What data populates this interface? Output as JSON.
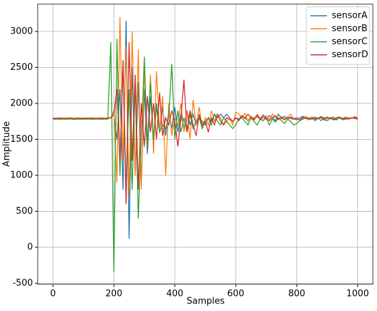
{
  "chart_data": {
    "type": "line",
    "xlabel": "Samples",
    "ylabel": "Amplitude",
    "x": [
      0,
      10,
      20,
      30,
      40,
      50,
      60,
      70,
      80,
      90,
      100,
      110,
      120,
      130,
      140,
      150,
      160,
      170,
      180,
      190,
      200,
      210,
      220,
      230,
      240,
      250,
      260,
      270,
      280,
      290,
      300,
      310,
      320,
      330,
      340,
      350,
      360,
      370,
      380,
      390,
      400,
      410,
      420,
      430,
      440,
      450,
      460,
      470,
      480,
      490,
      500,
      510,
      520,
      530,
      540,
      550,
      560,
      570,
      580,
      590,
      600,
      610,
      620,
      630,
      640,
      650,
      660,
      670,
      680,
      690,
      700,
      710,
      720,
      730,
      740,
      750,
      760,
      770,
      780,
      790,
      800,
      810,
      820,
      830,
      840,
      850,
      860,
      870,
      880,
      890,
      900,
      910,
      920,
      930,
      940,
      950,
      960,
      970,
      980,
      990,
      1000
    ],
    "series": [
      {
        "name": "sensorA",
        "color": "#1f77b4",
        "values": [
          1790,
          1792,
          1788,
          1790,
          1791,
          1789,
          1790,
          1792,
          1788,
          1790,
          1790,
          1791,
          1789,
          1790,
          1788,
          1792,
          1790,
          1789,
          1791,
          1800,
          1850,
          1500,
          2200,
          800,
          3150,
          120,
          2500,
          1000,
          2300,
          900,
          2200,
          1300,
          2100,
          1500,
          2000,
          1600,
          1950,
          1550,
          1900,
          1650,
          1950,
          1600,
          1850,
          1650,
          1900,
          1700,
          1850,
          1700,
          1800,
          1750,
          1700,
          1800,
          1750,
          1850,
          1800,
          1850,
          1800,
          1850,
          1800,
          1750,
          1800,
          1780,
          1830,
          1800,
          1760,
          1820,
          1790,
          1840,
          1770,
          1810,
          1780,
          1830,
          1800,
          1760,
          1850,
          1790,
          1820,
          1780,
          1810,
          1790,
          1770,
          1800,
          1820,
          1790,
          1780,
          1810,
          1760,
          1790,
          1800,
          1770,
          1760,
          1790,
          1780,
          1770,
          1800,
          1790,
          1780,
          1800,
          1790,
          1810,
          1790
        ]
      },
      {
        "name": "sensorB",
        "color": "#ff7f0e",
        "values": [
          1785,
          1787,
          1783,
          1786,
          1784,
          1788,
          1785,
          1783,
          1786,
          1785,
          1787,
          1784,
          1786,
          1785,
          1783,
          1787,
          1785,
          1786,
          1784,
          1800,
          1900,
          900,
          3200,
          1200,
          2800,
          700,
          3000,
          1000,
          2750,
          800,
          2500,
          1400,
          2400,
          1300,
          2450,
          1600,
          2100,
          1000,
          2000,
          1550,
          1800,
          1700,
          2000,
          1600,
          1900,
          1500,
          2050,
          1700,
          1950,
          1650,
          1800,
          1700,
          1900,
          1750,
          1850,
          1800,
          1700,
          1750,
          1800,
          1700,
          1880,
          1850,
          1800,
          1860,
          1750,
          1820,
          1780,
          1850,
          1800,
          1760,
          1830,
          1780,
          1850,
          1800,
          1770,
          1820,
          1790,
          1800,
          1850,
          1790,
          1800,
          1760,
          1790,
          1820,
          1780,
          1800,
          1810,
          1790,
          1820,
          1800,
          1790,
          1800,
          1810,
          1780,
          1800,
          1790,
          1810,
          1800,
          1790,
          1820,
          1800
        ]
      },
      {
        "name": "sensorC",
        "color": "#2ca02c",
        "values": [
          1780,
          1782,
          1778,
          1781,
          1779,
          1780,
          1783,
          1777,
          1780,
          1781,
          1779,
          1780,
          1782,
          1778,
          1780,
          1781,
          1779,
          1780,
          1782,
          2850,
          -350,
          2900,
          1000,
          2600,
          800,
          2200,
          800,
          2300,
          400,
          1500,
          2650,
          1400,
          2300,
          1500,
          1950,
          1600,
          1700,
          1650,
          1800,
          2550,
          1500,
          1900,
          1600,
          1800,
          1600,
          1850,
          1650,
          1750,
          1800,
          1650,
          1750,
          1800,
          1700,
          1850,
          1750,
          1700,
          1800,
          1750,
          1700,
          1650,
          1700,
          1780,
          1800,
          1750,
          1700,
          1800,
          1750,
          1700,
          1780,
          1760,
          1800,
          1700,
          1780,
          1740,
          1800,
          1760,
          1720,
          1780,
          1750,
          1700,
          1720,
          1760,
          1780,
          1800,
          1770,
          1790,
          1780,
          1800,
          1760,
          1800,
          1810,
          1790,
          1800,
          1780,
          1800,
          1770,
          1780,
          1790,
          1800,
          1790,
          1780
        ]
      },
      {
        "name": "sensorD",
        "color": "#d62728",
        "values": [
          1795,
          1793,
          1797,
          1795,
          1794,
          1796,
          1795,
          1793,
          1797,
          1795,
          1794,
          1796,
          1795,
          1797,
          1793,
          1795,
          1796,
          1794,
          1795,
          1800,
          1850,
          2200,
          1200,
          2600,
          600,
          2850,
          1200,
          2400,
          800,
          2000,
          1400,
          2100,
          1600,
          2000,
          1500,
          2150,
          1550,
          1800,
          1700,
          1900,
          1750,
          1400,
          1800,
          2330,
          1600,
          1900,
          1700,
          1550,
          1850,
          1700,
          1750,
          1600,
          1800,
          1700,
          1850,
          1750,
          1700,
          1800,
          1780,
          1750,
          1800,
          1760,
          1830,
          1790,
          1850,
          1800,
          1770,
          1820,
          1780,
          1840,
          1790,
          1760,
          1800,
          1830,
          1780,
          1800,
          1770,
          1810,
          1790,
          1780,
          1800,
          1770,
          1810,
          1790,
          1800,
          1780,
          1800,
          1790,
          1810,
          1780,
          1790,
          1800,
          1770,
          1800,
          1810,
          1790,
          1800,
          1780,
          1800,
          1790,
          1790
        ]
      }
    ],
    "xlim": [
      -50,
      1050
    ],
    "ylim": [
      -515,
      3380
    ],
    "xticks": [
      0,
      200,
      400,
      600,
      800,
      1000
    ],
    "yticks": [
      -500,
      0,
      500,
      1000,
      1500,
      2000,
      2500,
      3000
    ],
    "grid": true,
    "legend": "upper right"
  }
}
